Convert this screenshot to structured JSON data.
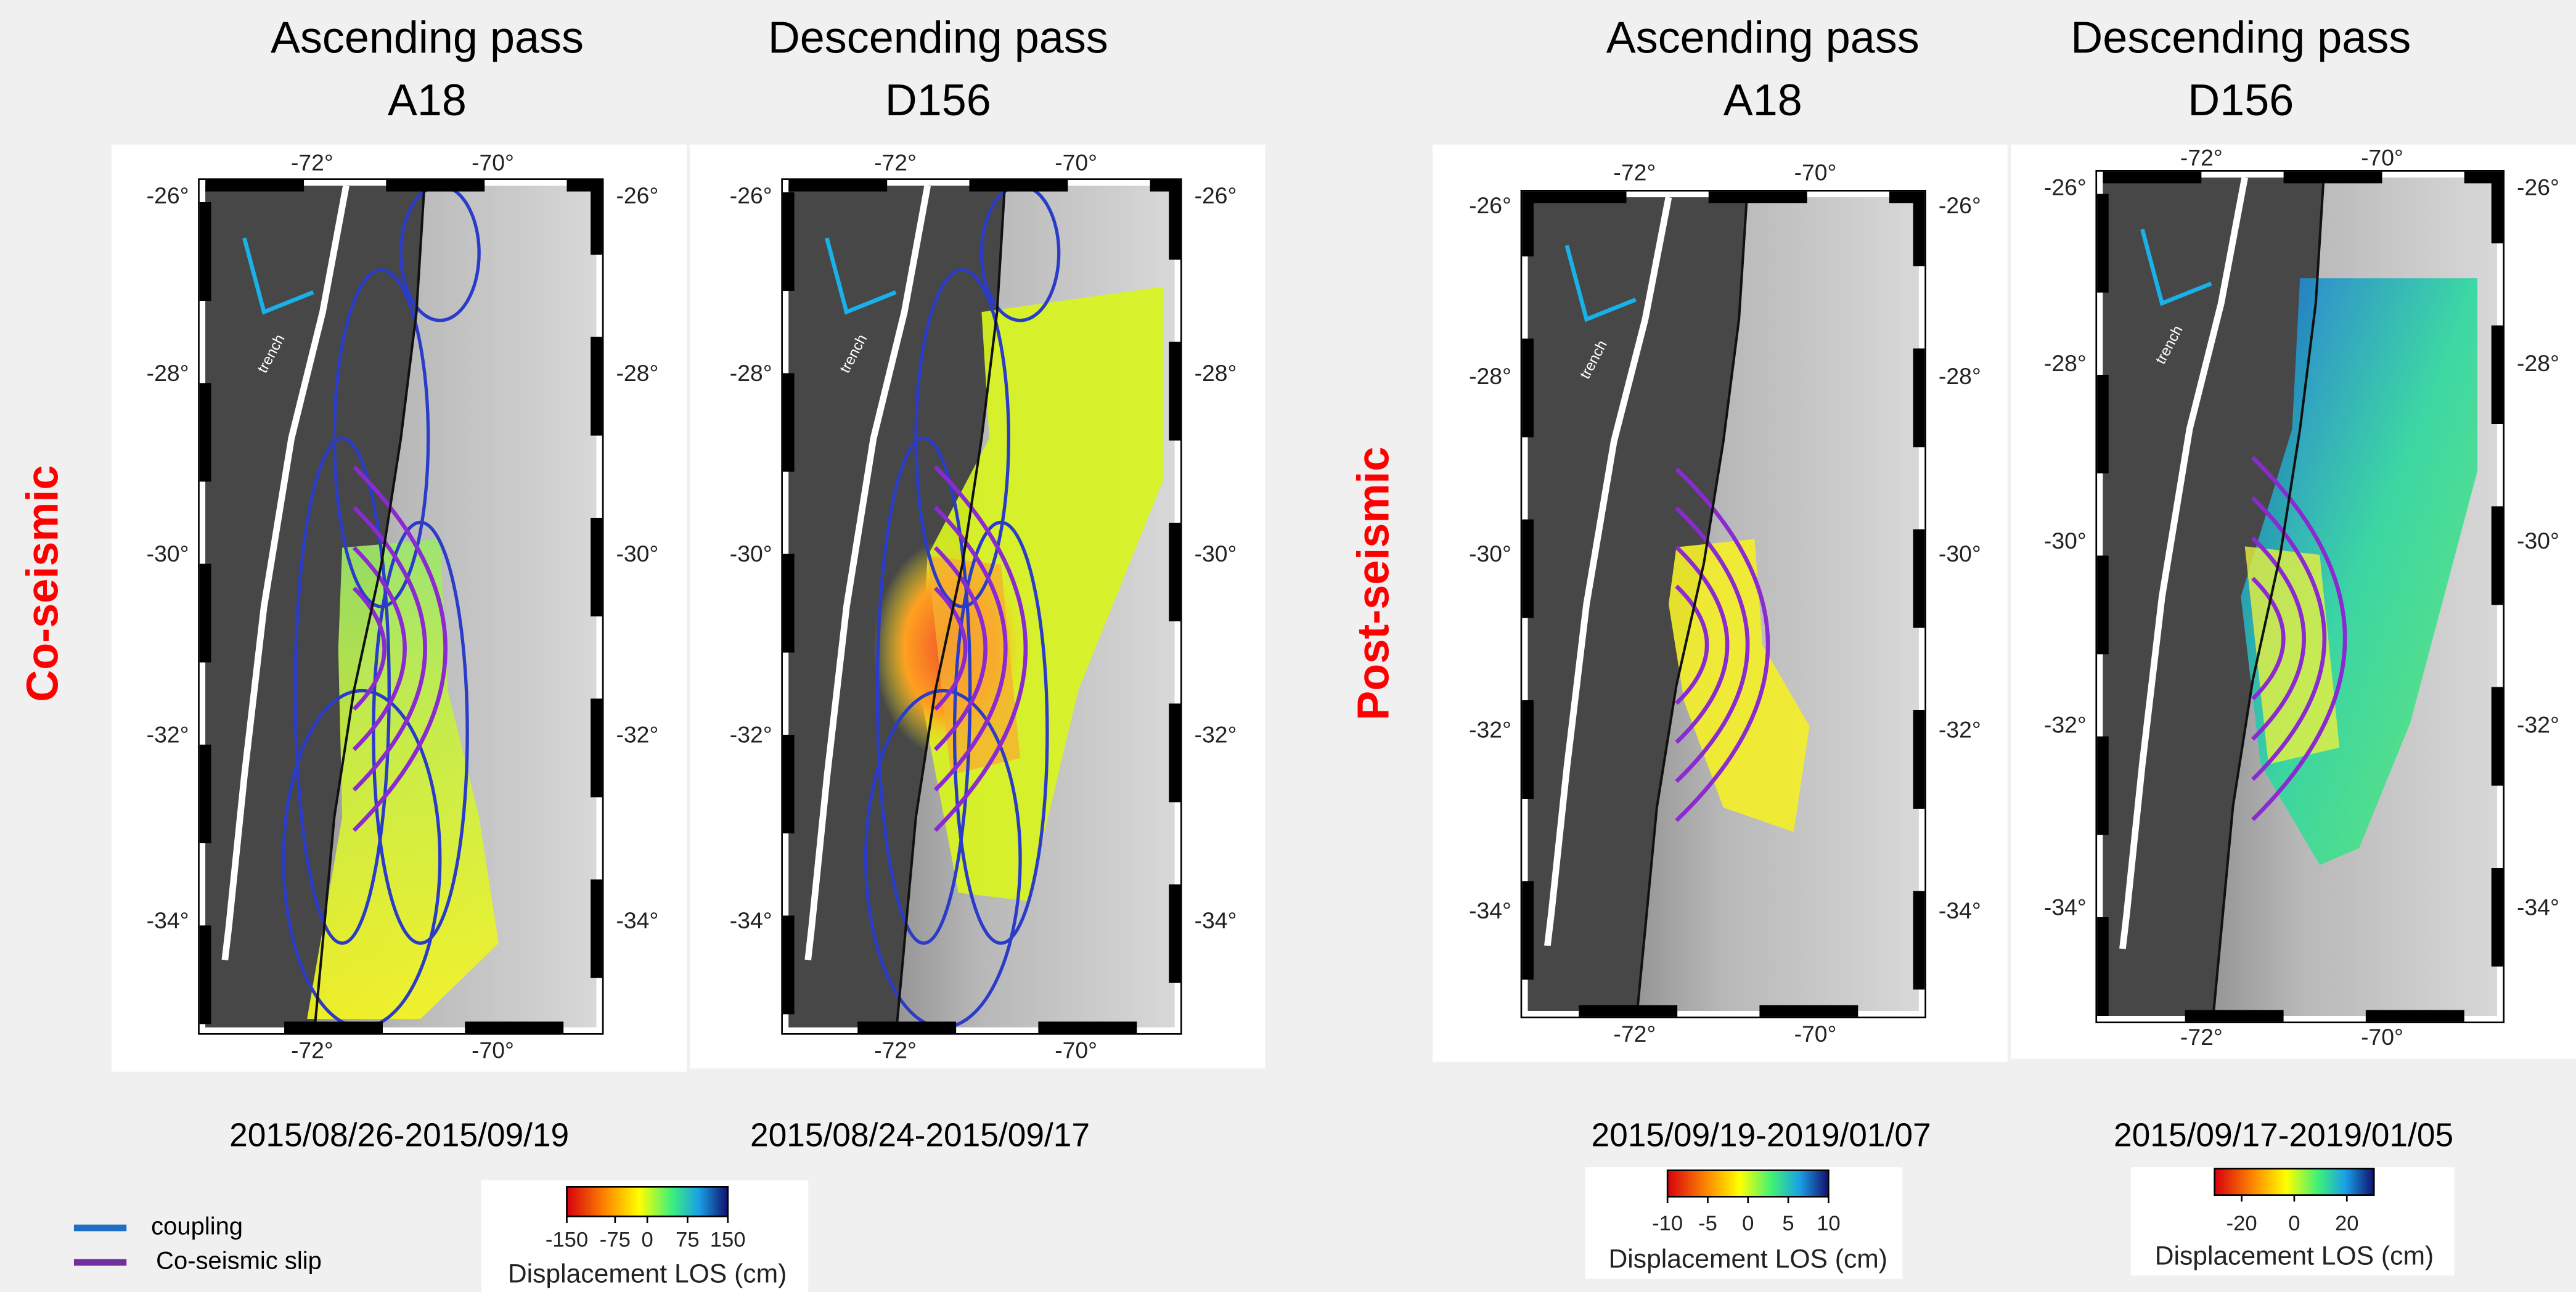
{
  "row_labels": [
    "Co-seismic",
    "Post-seismic"
  ],
  "panels": [
    {
      "title": [
        "Ascending pass",
        "A18"
      ],
      "date": "2015/08/26-2015/09/19",
      "lon_ticks": [
        "-72°",
        "-70°"
      ],
      "lat_ticks": [
        "-26°",
        "-28°",
        "-30°",
        "-32°",
        "-34°"
      ],
      "trench_label": "trench"
    },
    {
      "title": [
        "Descending pass",
        "D156"
      ],
      "date": "2015/08/24-2015/09/17",
      "lon_ticks": [
        "-72°",
        "-70°"
      ],
      "lat_ticks": [
        "-26°",
        "-28°",
        "-30°",
        "-32°",
        "-34°"
      ],
      "trench_label": "trench"
    },
    {
      "title": [
        "Ascending pass",
        "A18"
      ],
      "date": "2015/09/19-2019/01/07",
      "lon_ticks": [
        "-72°",
        "-70°"
      ],
      "lat_ticks": [
        "-26°",
        "-28°",
        "-30°",
        "-32°",
        "-34°"
      ],
      "trench_label": "trench"
    },
    {
      "title": [
        "Descending pass",
        "D156"
      ],
      "date": "2015/09/17-2019/01/05",
      "lon_ticks": [
        "-72°",
        "-70°"
      ],
      "lat_ticks": [
        "-26°",
        "-28°",
        "-30°",
        "-32°",
        "-34°"
      ],
      "trench_label": "trench"
    }
  ],
  "colorbars": [
    {
      "ticks": [
        -150,
        -75,
        0,
        75,
        150
      ],
      "label": "Displacement LOS (cm)"
    },
    {
      "ticks": [
        -10,
        -5,
        0,
        5,
        10
      ],
      "label": "Displacement LOS (cm)"
    },
    {
      "ticks": [
        -20,
        0,
        20
      ],
      "label": "Displacement LOS (cm)"
    }
  ],
  "legend": [
    {
      "label": "coupling",
      "color": "#1f6fc6"
    },
    {
      "label": "Co-seismic slip",
      "color": "#7030a0"
    }
  ]
}
